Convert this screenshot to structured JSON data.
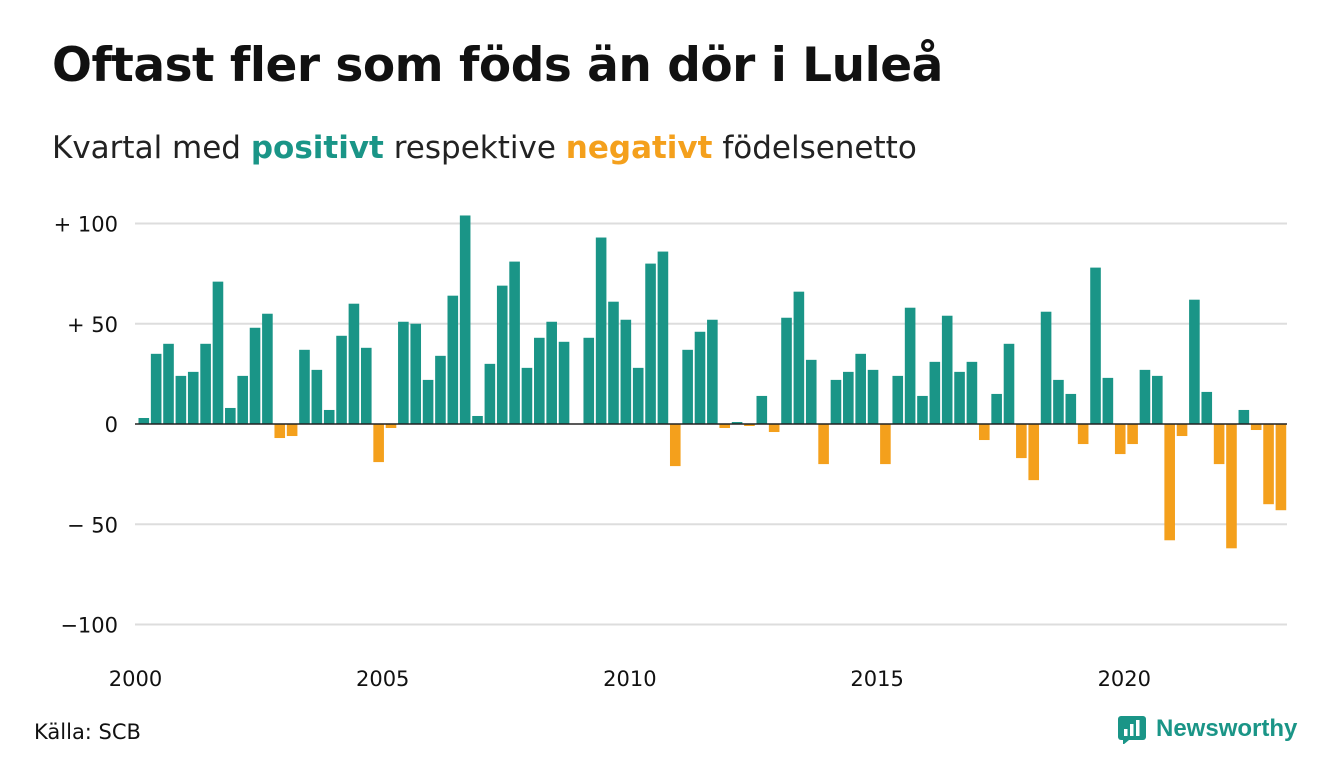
{
  "title": "Oftast fler som föds än dör i Luleå",
  "subtitle": {
    "prefix": "Kvartal med ",
    "positive": "positivt",
    "middle": " respektive ",
    "negative": "negativt",
    "suffix": " födelsenetto"
  },
  "source": "Källa: SCB",
  "brand": "Newsworthy",
  "colors": {
    "positive": "#1a9587",
    "negative": "#f4a01c",
    "grid": "#dddddd",
    "brand": "#1a9587"
  },
  "chart_data": {
    "type": "bar",
    "title": "Oftast fler som föds än dör i Luleå",
    "xlabel": "",
    "ylabel": "",
    "ylim": [
      -100,
      100
    ],
    "y_ticks": [
      100,
      50,
      0,
      -50,
      -100
    ],
    "y_tick_labels": [
      "+ 100",
      "+  50",
      "0",
      "− 50",
      "−100"
    ],
    "x_tick_labels": [
      "2000",
      "2005",
      "2010",
      "2015",
      "2020"
    ],
    "grid": true,
    "series": [
      {
        "start": "2000 Q1",
        "frequency": "quarterly",
        "values": [
          3,
          35,
          40,
          24,
          26,
          40,
          71,
          8,
          24,
          48,
          55,
          -7,
          -6,
          37,
          27,
          7,
          44,
          60,
          38,
          -19,
          -2,
          51,
          50,
          22,
          34,
          64,
          104,
          4,
          30,
          69,
          81,
          28,
          43,
          51,
          41,
          0,
          43,
          93,
          61,
          52,
          28,
          80,
          86,
          -21,
          37,
          46,
          52,
          -2,
          1,
          -1,
          14,
          -4,
          53,
          66,
          32,
          -20,
          22,
          26,
          35,
          27,
          -20,
          24,
          58,
          14,
          31,
          54,
          26,
          31,
          -8,
          15,
          40,
          -17,
          -28,
          56,
          22,
          15,
          -10,
          78,
          23,
          -15,
          -10,
          27,
          24,
          -58,
          -6,
          62,
          16,
          -20,
          -62,
          7,
          -3,
          -40,
          -43
        ]
      }
    ]
  }
}
